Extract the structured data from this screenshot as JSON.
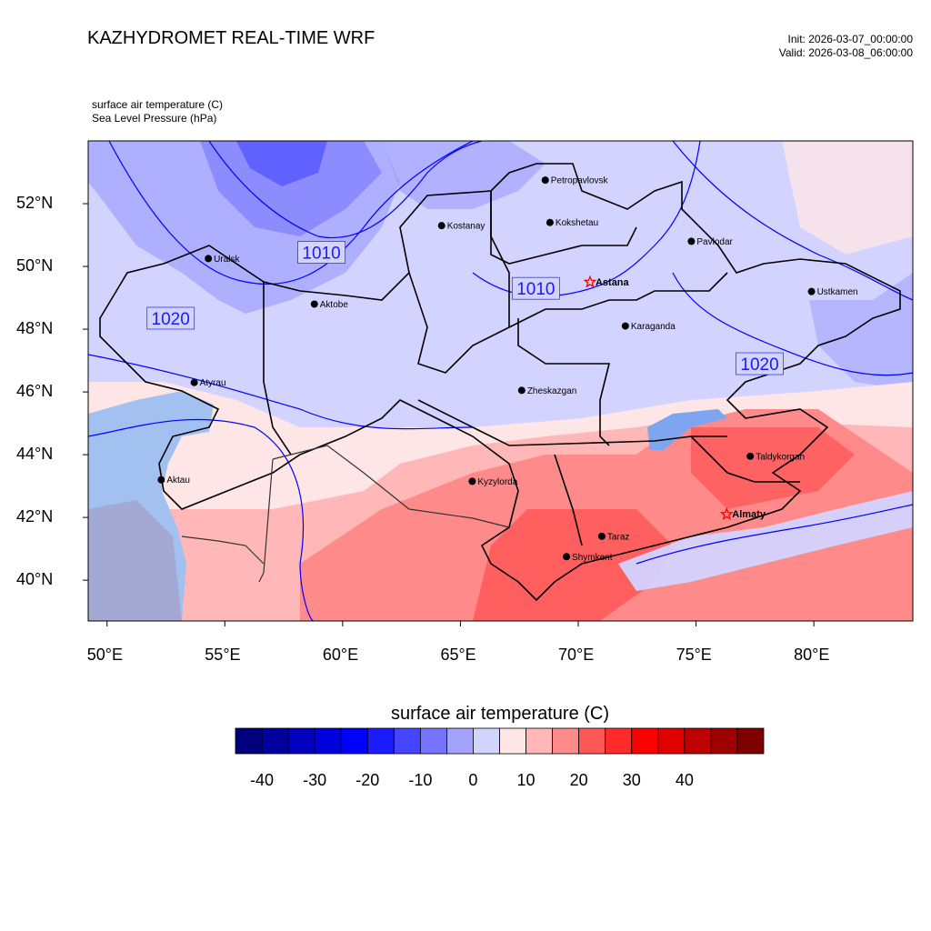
{
  "header": {
    "title": "KAZHYDROMET REAL-TIME WRF",
    "init": "Init: 2026-03-07_00:00:00",
    "valid": "Valid: 2026-03-08_06:00:00",
    "field1": "surface air temperature   (C)",
    "field2": "Sea Level Pressure   (hPa)"
  },
  "axes": {
    "lat_labels": [
      "52°N",
      "50°N",
      "48°N",
      "46°N",
      "44°N",
      "42°N",
      "40°N"
    ],
    "lon_labels": [
      "50°E",
      "55°E",
      "60°E",
      "65°E",
      "70°E",
      "75°E",
      "80°E"
    ],
    "lon_range": [
      49.2,
      84.2
    ],
    "lat_range": [
      38.7,
      54.0
    ]
  },
  "cities": [
    {
      "name": "Petropavlovsk",
      "lon": 68.6,
      "lat": 52.75,
      "capital": false
    },
    {
      "name": "Kostanay",
      "lon": 64.2,
      "lat": 51.3,
      "capital": false
    },
    {
      "name": "Kokshetau",
      "lon": 68.8,
      "lat": 51.4,
      "capital": false
    },
    {
      "name": "Pavlodar",
      "lon": 74.8,
      "lat": 50.8,
      "capital": false
    },
    {
      "name": "Uralsk",
      "lon": 54.3,
      "lat": 50.25,
      "capital": false
    },
    {
      "name": "Aktobe",
      "lon": 58.8,
      "lat": 48.8,
      "capital": false
    },
    {
      "name": "Astana",
      "lon": 70.5,
      "lat": 49.5,
      "capital": true
    },
    {
      "name": "Ustkamen",
      "lon": 79.9,
      "lat": 49.2,
      "capital": false
    },
    {
      "name": "Karaganda",
      "lon": 72.0,
      "lat": 48.1,
      "capital": false
    },
    {
      "name": "Atyrau",
      "lon": 53.7,
      "lat": 46.3,
      "capital": false
    },
    {
      "name": "Zheskazgan",
      "lon": 67.6,
      "lat": 46.05,
      "capital": false
    },
    {
      "name": "Taldykorgan",
      "lon": 77.3,
      "lat": 43.95,
      "capital": false
    },
    {
      "name": "Aktau",
      "lon": 52.3,
      "lat": 43.2,
      "capital": false
    },
    {
      "name": "Kyzylorda",
      "lon": 65.5,
      "lat": 43.15,
      "capital": false
    },
    {
      "name": "Almaty",
      "lon": 76.3,
      "lat": 42.1,
      "capital": true
    },
    {
      "name": "Taraz",
      "lon": 71.0,
      "lat": 41.4,
      "capital": false
    },
    {
      "name": "Shymkent",
      "lon": 69.5,
      "lat": 40.75,
      "capital": false
    }
  ],
  "pressure_labels": [
    {
      "text": "1010",
      "lon": 59.1,
      "lat": 50.45
    },
    {
      "text": "1010",
      "lon": 68.2,
      "lat": 49.3
    },
    {
      "text": "1020",
      "lon": 52.7,
      "lat": 48.35
    },
    {
      "text": "1020",
      "lon": 77.7,
      "lat": 46.9
    }
  ],
  "colorbar": {
    "title": "surface air temperature  (C)",
    "colors": [
      "#00007f",
      "#00009f",
      "#0000bf",
      "#0000df",
      "#0000ff",
      "#1b1bff",
      "#4545ff",
      "#7474ff",
      "#a3a3ff",
      "#d3d3ff",
      "#ffe6e6",
      "#ffb7b7",
      "#ff8a8a",
      "#ff5757",
      "#ff2b2b",
      "#ff0000",
      "#df0000",
      "#bf0000",
      "#9f0000",
      "#7f0000"
    ],
    "tick_labels": [
      "-40",
      "-30",
      "-20",
      "-10",
      "0",
      "10",
      "20",
      "30",
      "40"
    ],
    "tick_values": [
      -40,
      -30,
      -20,
      -10,
      0,
      10,
      20,
      30,
      40
    ],
    "min": -45,
    "max": 55
  },
  "colors": {
    "land_cold": "#d3d3ff",
    "sea": "#a3c1f0",
    "isobar": "#0000ff",
    "border": "#000000",
    "capital_star": "#ff0000"
  }
}
